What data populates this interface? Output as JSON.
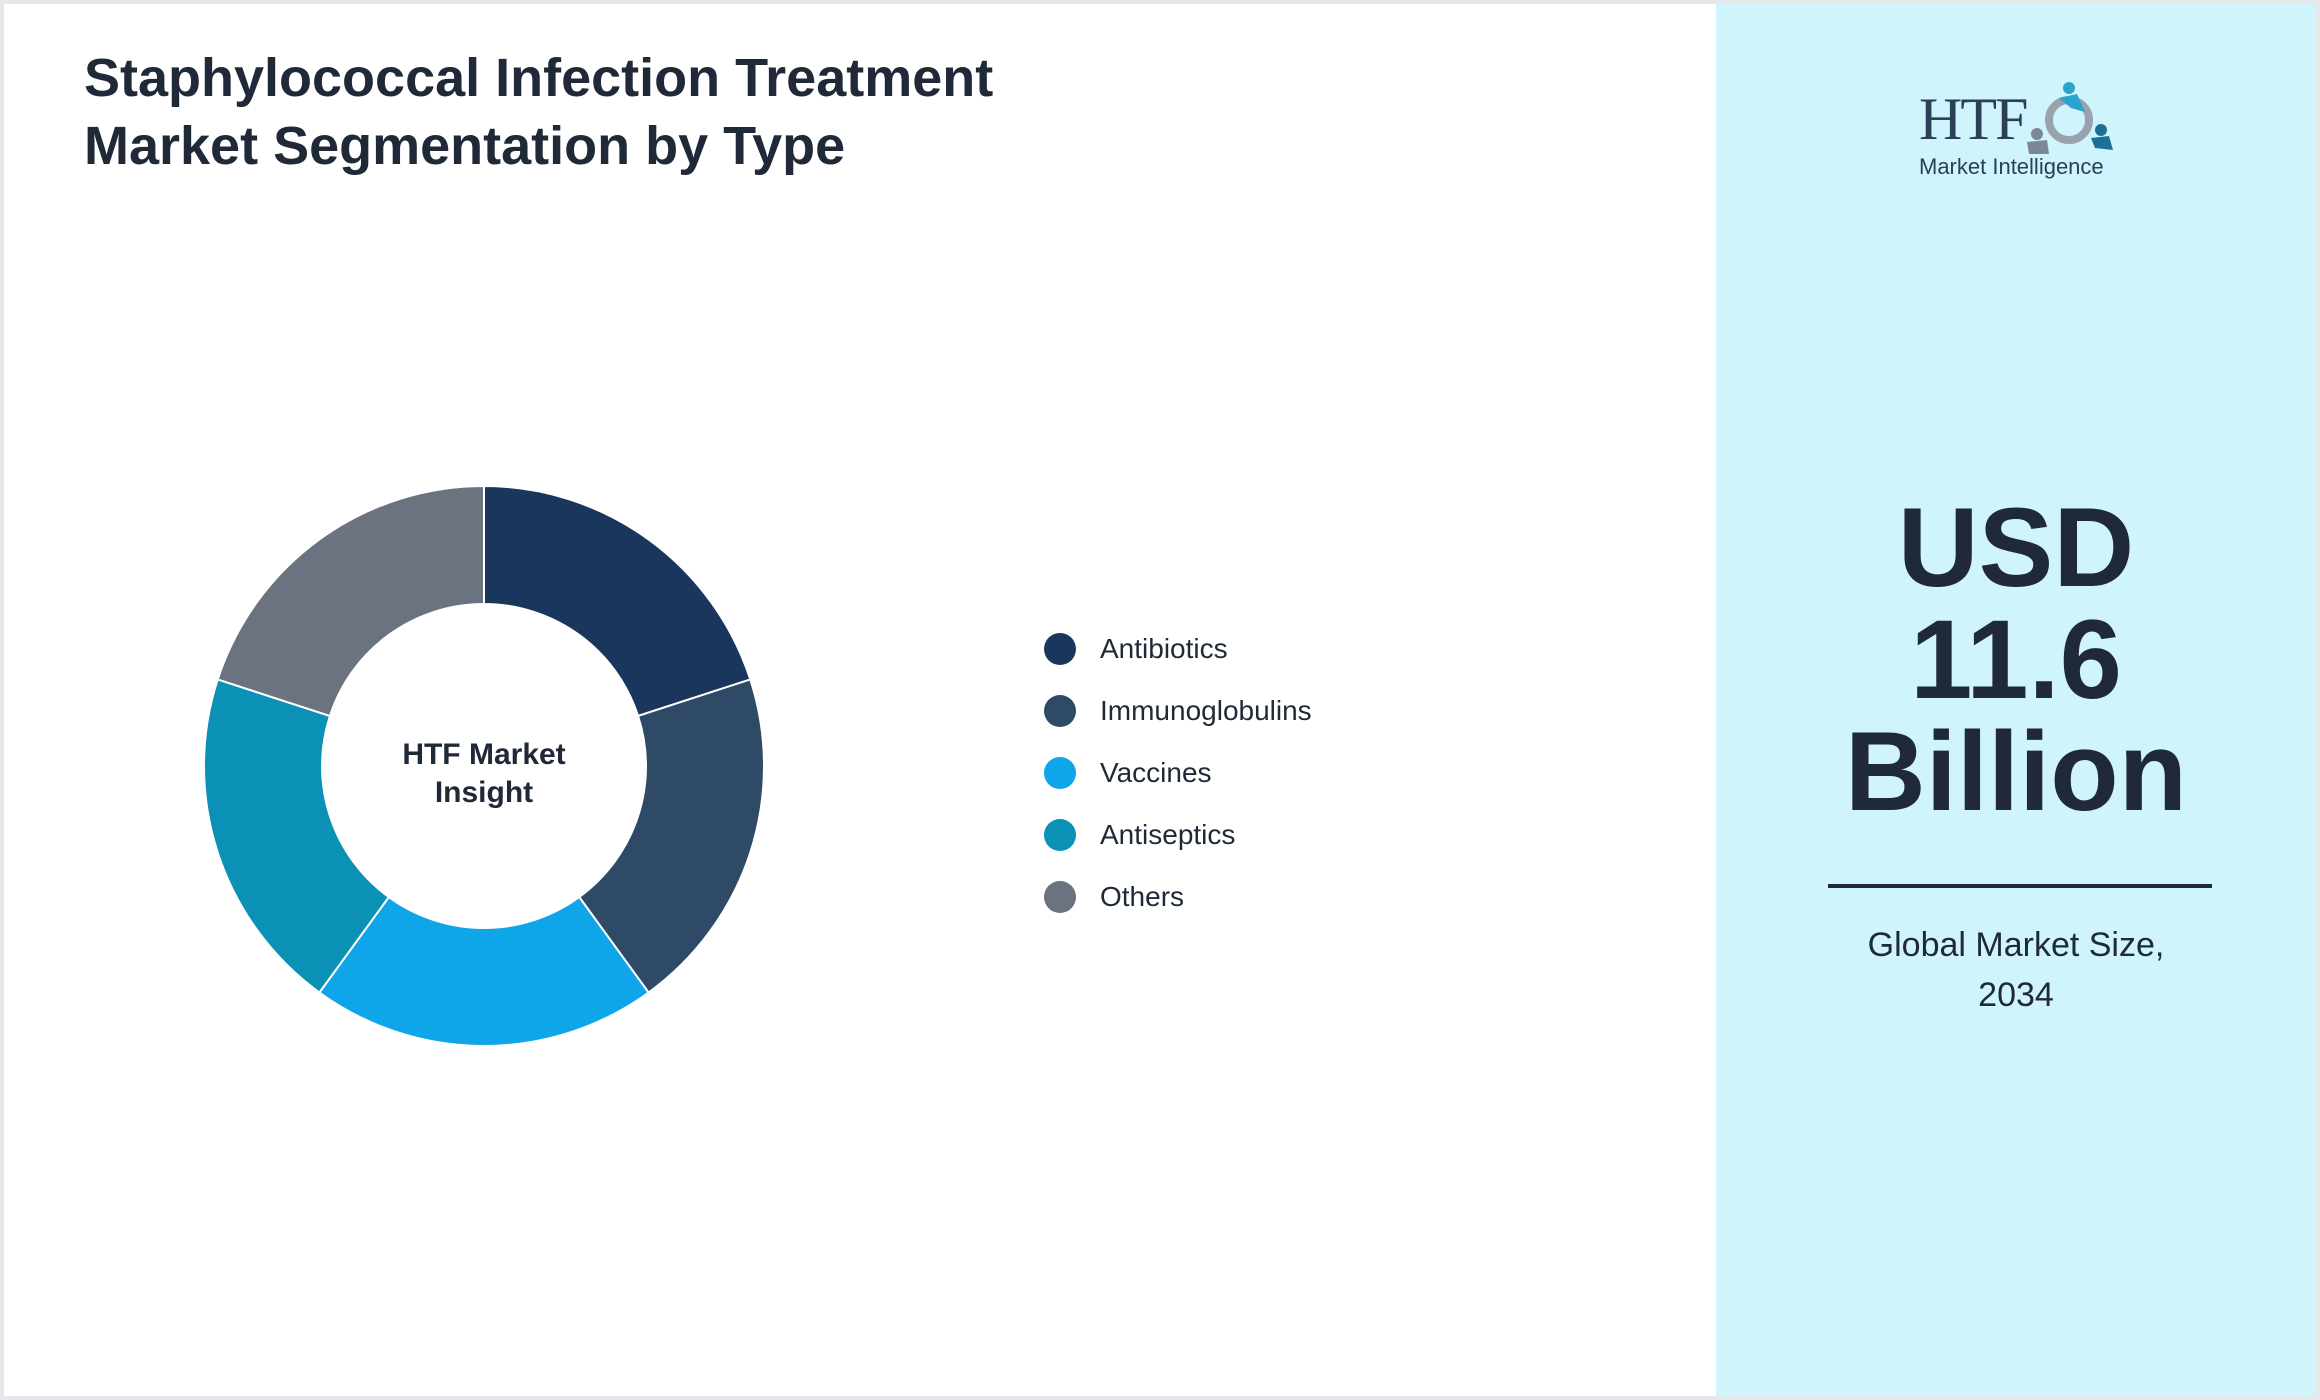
{
  "title": "Staphylococcal Infection Treatment Market Segmentation by Type",
  "center_label": [
    "HTF Market",
    "Insight"
  ],
  "logo": {
    "brand": "HTF",
    "tagline": "Market Intelligence"
  },
  "market_size": {
    "value_lines": [
      "USD",
      "11.6",
      "Billion"
    ],
    "caption_lines": [
      "Global Market Size,",
      "2034"
    ]
  },
  "colors": {
    "panel_background": "#cff4fc",
    "text": "#1f2937"
  },
  "chart_data": {
    "type": "pie",
    "donut": true,
    "title": "Staphylococcal Infection Treatment Market Segmentation by Type",
    "legend_position": "right",
    "categories": [
      "Antibiotics",
      "Immunoglobulins",
      "Vaccines",
      "Antiseptics",
      "Others"
    ],
    "values": [
      20,
      20,
      20,
      20,
      20
    ],
    "colors": [
      "#1b365d",
      "#2e4a66",
      "#0fa5e9",
      "#0a91b5",
      "#6b7280"
    ]
  }
}
